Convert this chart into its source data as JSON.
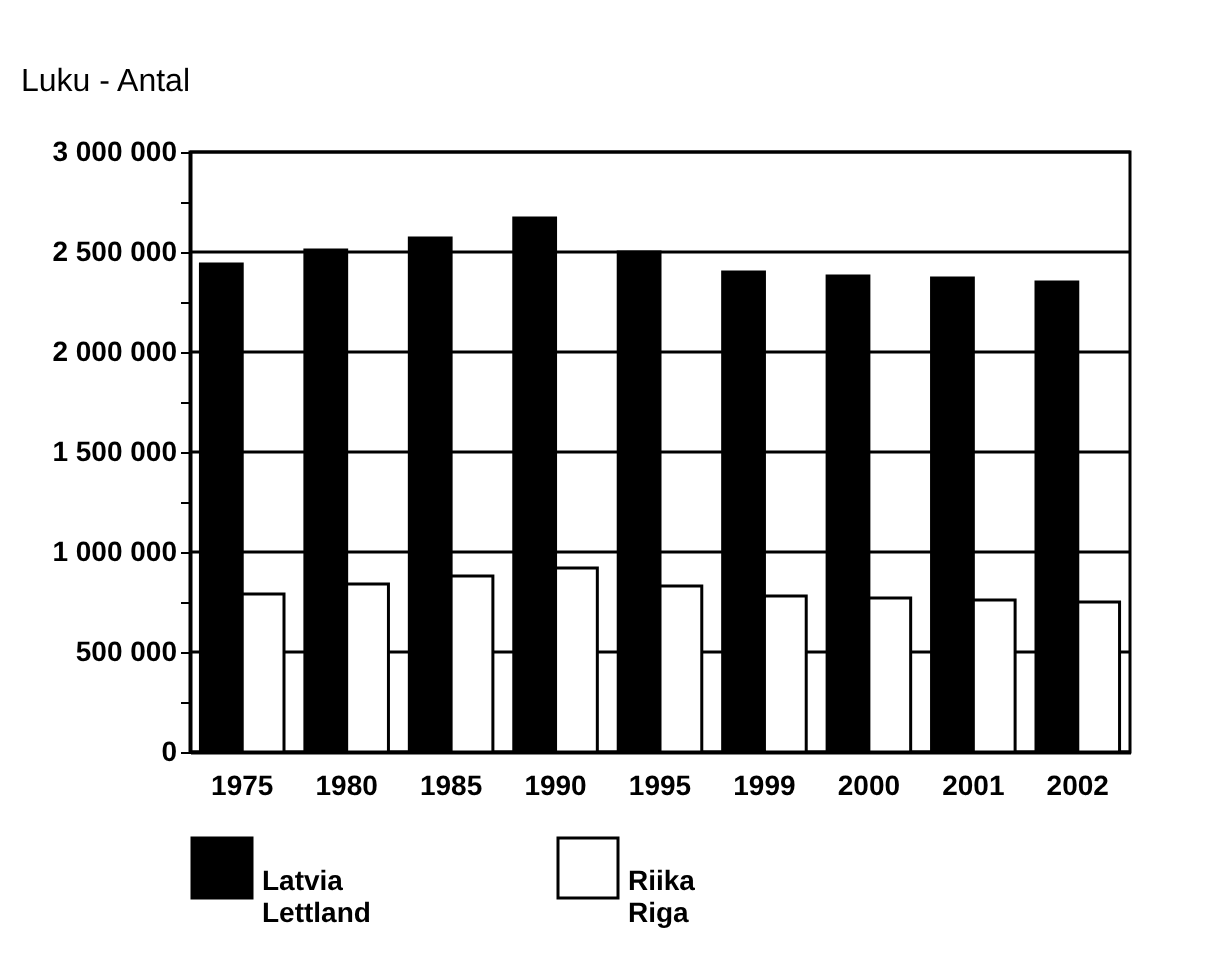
{
  "chart_data": {
    "type": "bar",
    "ylabel": "Luku - Antal",
    "categories": [
      "1975",
      "1980",
      "1985",
      "1990",
      "1995",
      "1999",
      "2000",
      "2001",
      "2002"
    ],
    "series": [
      {
        "name": "Latvia\nLettland",
        "color": "#000000",
        "values": [
          2440000,
          2510000,
          2570000,
          2670000,
          2500000,
          2400000,
          2380000,
          2370000,
          2350000
        ]
      },
      {
        "name": "Riika\nRiga",
        "color": "#ffffff",
        "values": [
          790000,
          840000,
          880000,
          920000,
          830000,
          780000,
          770000,
          760000,
          750000
        ]
      }
    ],
    "ylim": [
      0,
      3000000
    ],
    "yticks": [
      {
        "value": 0,
        "label": "0"
      },
      {
        "value": 250000,
        "label": null
      },
      {
        "value": 500000,
        "label": "500 000"
      },
      {
        "value": 750000,
        "label": null
      },
      {
        "value": 1000000,
        "label": "1 000 000"
      },
      {
        "value": 1250000,
        "label": null
      },
      {
        "value": 1500000,
        "label": "1 500 000"
      },
      {
        "value": 1750000,
        "label": null
      },
      {
        "value": 2000000,
        "label": "2 000 000"
      },
      {
        "value": 2250000,
        "label": null
      },
      {
        "value": 2500000,
        "label": "2 500 000"
      },
      {
        "value": 2750000,
        "label": null
      },
      {
        "value": 3000000,
        "label": "3 000 000"
      }
    ],
    "grid": "y",
    "legend": "bottom"
  }
}
